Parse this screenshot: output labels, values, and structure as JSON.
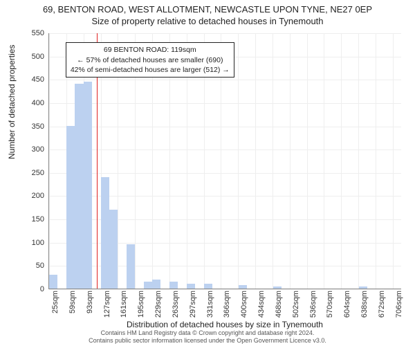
{
  "header": {
    "line1": "69, BENTON ROAD, WEST ALLOTMENT, NEWCASTLE UPON TYNE, NE27 0EP",
    "line2": "Size of property relative to detached houses in Tynemouth"
  },
  "chart": {
    "type": "histogram",
    "ylabel": "Number of detached properties",
    "xlabel": "Distribution of detached houses by size in Tynemouth",
    "ylim": [
      0,
      550
    ],
    "ytick_step": 50,
    "yticks": [
      0,
      50,
      100,
      150,
      200,
      250,
      300,
      350,
      400,
      450,
      500,
      550
    ],
    "xtick_labels": [
      "25sqm",
      "59sqm",
      "93sqm",
      "127sqm",
      "161sqm",
      "195sqm",
      "229sqm",
      "263sqm",
      "297sqm",
      "331sqm",
      "366sqm",
      "400sqm",
      "434sqm",
      "468sqm",
      "502sqm",
      "536sqm",
      "570sqm",
      "604sqm",
      "638sqm",
      "672sqm",
      "706sqm"
    ],
    "xtick_step_sqm": 34,
    "x_range_sqm": [
      25,
      723
    ],
    "bar_color": "#bcd1f0",
    "bar_border_color": "#bcd1f0",
    "grid_color": "#eeeeee",
    "axis_color": "#888888",
    "background_color": "#ffffff",
    "bars": [
      {
        "start_sqm": 25,
        "width_sqm": 17,
        "value": 30
      },
      {
        "start_sqm": 59,
        "width_sqm": 17,
        "value": 350
      },
      {
        "start_sqm": 76,
        "width_sqm": 17,
        "value": 440
      },
      {
        "start_sqm": 93,
        "width_sqm": 17,
        "value": 445
      },
      {
        "start_sqm": 127,
        "width_sqm": 17,
        "value": 240
      },
      {
        "start_sqm": 144,
        "width_sqm": 17,
        "value": 170
      },
      {
        "start_sqm": 178,
        "width_sqm": 17,
        "value": 95
      },
      {
        "start_sqm": 212,
        "width_sqm": 17,
        "value": 15
      },
      {
        "start_sqm": 229,
        "width_sqm": 17,
        "value": 20
      },
      {
        "start_sqm": 263,
        "width_sqm": 17,
        "value": 15
      },
      {
        "start_sqm": 297,
        "width_sqm": 17,
        "value": 10
      },
      {
        "start_sqm": 331,
        "width_sqm": 17,
        "value": 10
      },
      {
        "start_sqm": 400,
        "width_sqm": 17,
        "value": 8
      },
      {
        "start_sqm": 468,
        "width_sqm": 17,
        "value": 5
      },
      {
        "start_sqm": 638,
        "width_sqm": 17,
        "value": 5
      }
    ],
    "marker": {
      "sqm": 119,
      "color": "#e02020"
    },
    "annotation": {
      "line1": "69 BENTON ROAD: 119sqm",
      "line2": "← 57% of detached houses are smaller (690)",
      "line3": "42% of semi-detached houses are larger (512) →",
      "border_color": "#222222",
      "bg_color": "#ffffff",
      "fontsize": 10.5,
      "pos_sqm": 59,
      "pos_y_value": 530
    }
  },
  "footer": {
    "line1": "Contains HM Land Registry data © Crown copyright and database right 2024.",
    "line2": "Contains public sector information licensed under the Open Government Licence v3.0."
  }
}
